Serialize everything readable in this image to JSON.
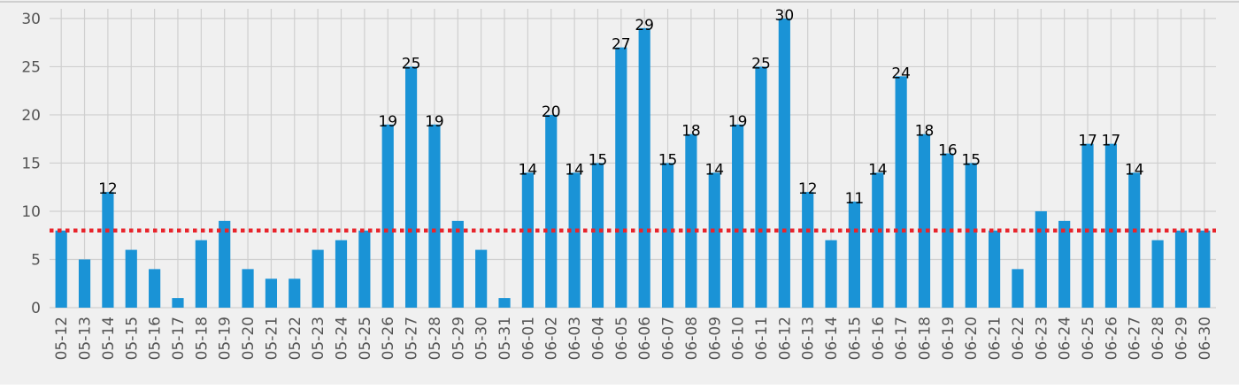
{
  "chart_data": {
    "type": "bar",
    "title": "",
    "xlabel": "",
    "ylabel": "",
    "ylim": [
      0,
      31
    ],
    "yticks": [
      0,
      5,
      10,
      15,
      20,
      25,
      30
    ],
    "grid": true,
    "colors": {
      "bar": "#1a93d6",
      "reference_line": "#e8242b",
      "plot_background": "#f0f0f0",
      "grid": "#cfcfcf"
    },
    "reference_line": {
      "value": 8,
      "style": "dotted"
    },
    "label_threshold": 11,
    "categories": [
      "05-12",
      "05-13",
      "05-14",
      "05-15",
      "05-16",
      "05-17",
      "05-18",
      "05-19",
      "05-20",
      "05-21",
      "05-22",
      "05-23",
      "05-24",
      "05-25",
      "05-26",
      "05-27",
      "05-28",
      "05-29",
      "05-30",
      "05-31",
      "06-01",
      "06-02",
      "06-03",
      "06-04",
      "06-05",
      "06-06",
      "06-07",
      "06-08",
      "06-09",
      "06-10",
      "06-11",
      "06-12",
      "06-13",
      "06-14",
      "06-15",
      "06-16",
      "06-17",
      "06-18",
      "06-19",
      "06-20",
      "06-21",
      "06-22",
      "06-23",
      "06-24",
      "06-25",
      "06-26",
      "06-27",
      "06-28",
      "06-29",
      "06-30"
    ],
    "values": [
      8,
      5,
      12,
      6,
      4,
      1,
      7,
      9,
      4,
      3,
      3,
      6,
      7,
      8,
      19,
      25,
      19,
      9,
      6,
      1,
      14,
      20,
      14,
      15,
      27,
      29,
      15,
      18,
      14,
      19,
      25,
      30,
      12,
      7,
      11,
      14,
      24,
      18,
      16,
      15,
      8,
      4,
      10,
      9,
      17,
      17,
      14,
      7,
      8,
      8
    ]
  }
}
